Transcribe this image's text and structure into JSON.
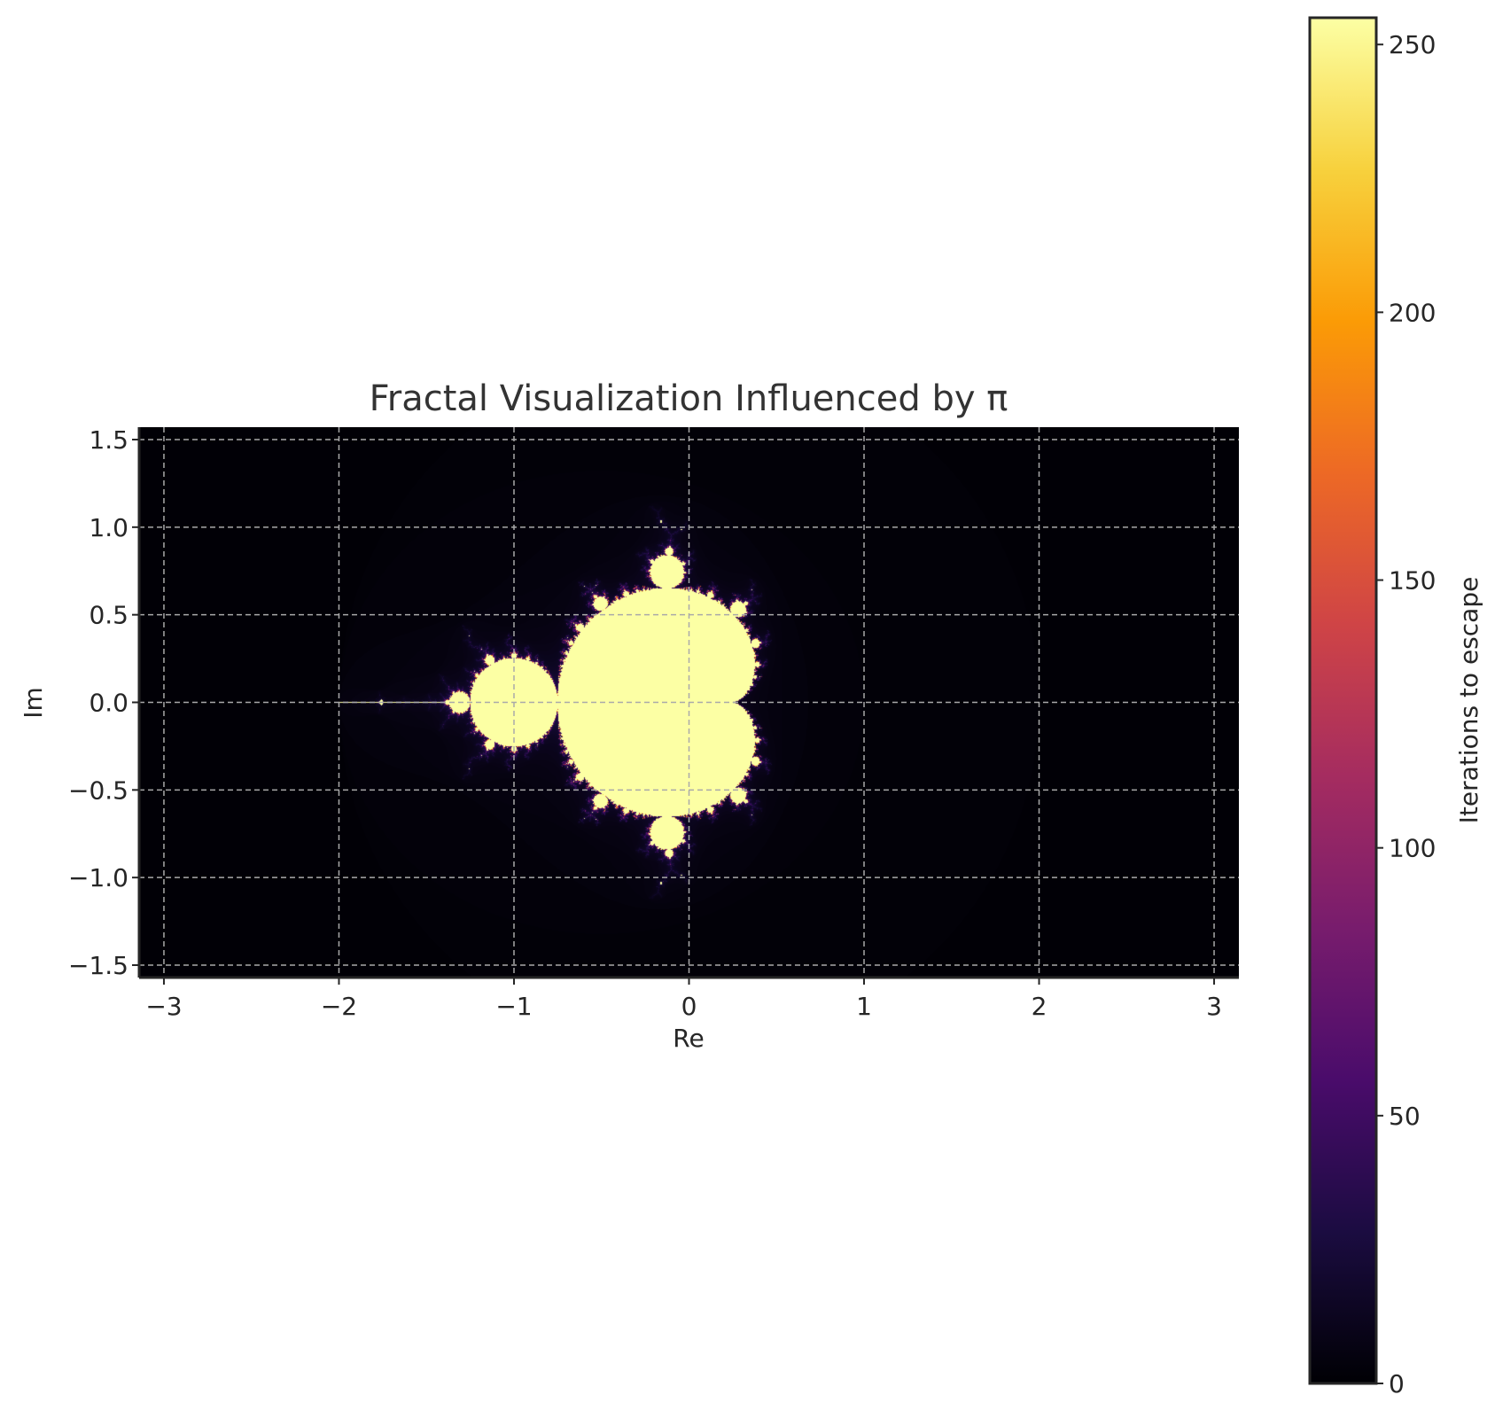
{
  "chart_data": {
    "type": "heatmap",
    "title": "Fractal Visualization Influenced by π",
    "xlabel": "Re",
    "ylabel": "Im",
    "xlim": [
      -3.14159,
      3.14159
    ],
    "ylim": [
      -1.5708,
      1.5708
    ],
    "x_ticks": [
      -3,
      -2,
      -1,
      0,
      1,
      2,
      3
    ],
    "x_tick_labels": [
      "−3",
      "−2",
      "−1",
      "0",
      "1",
      "2",
      "3"
    ],
    "y_ticks": [
      1.5,
      1.0,
      0.5,
      0.0,
      -0.5,
      -1.0,
      -1.5
    ],
    "y_tick_labels": [
      "1.5",
      "1.0",
      "0.5",
      "0.0",
      "−0.5",
      "−1.0",
      "−1.5"
    ],
    "grid": true,
    "colormap": "inferno",
    "colorbar": {
      "label": "Iterations to escape",
      "range": [
        0,
        255
      ],
      "ticks": [
        0,
        50,
        100,
        150,
        200,
        250
      ],
      "tick_labels": [
        "0",
        "50",
        "100",
        "150",
        "200",
        "250"
      ],
      "stops": [
        "#000004",
        "#1b0c41",
        "#4a0c6b",
        "#781c6d",
        "#a52c60",
        "#cf4446",
        "#ed6925",
        "#fb9b06",
        "#f7d13d",
        "#fcffa4"
      ]
    },
    "fractal": "Mandelbrot set, z -> z^2 + c",
    "max_iterations": 256
  }
}
